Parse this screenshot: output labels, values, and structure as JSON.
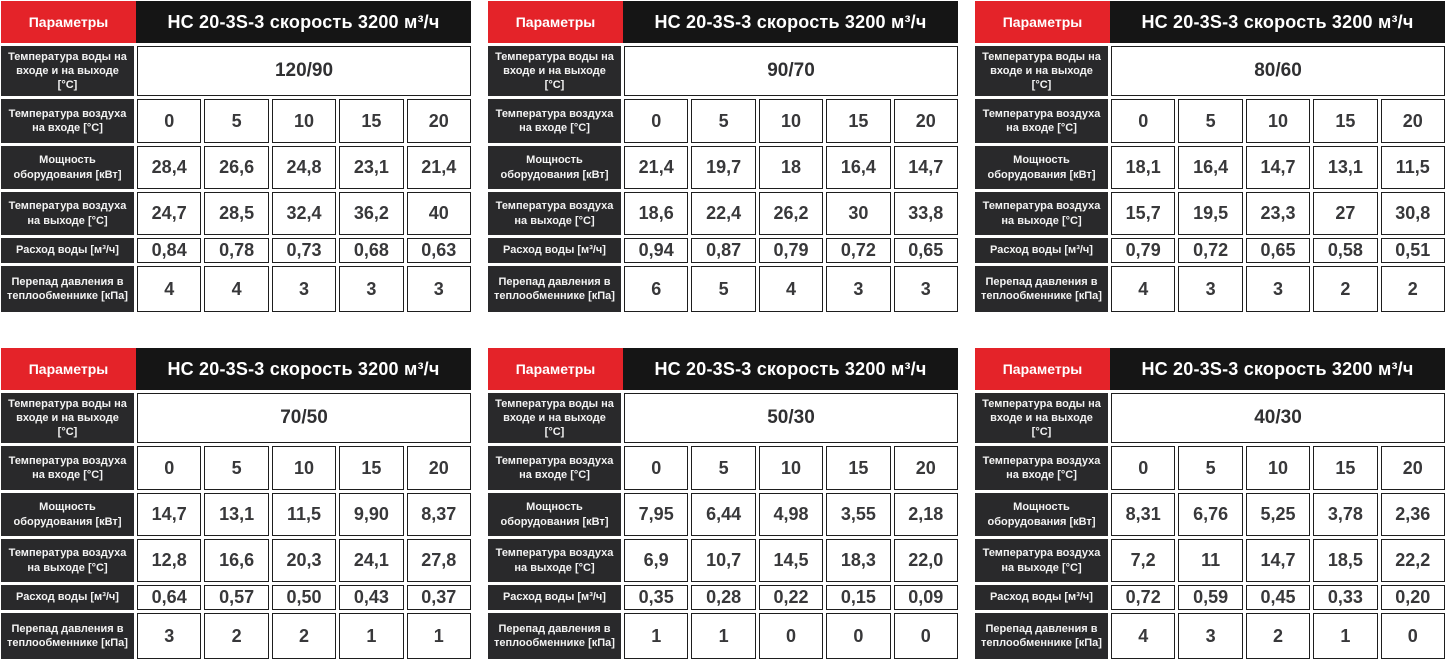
{
  "colors": {
    "accent_red": "#e42329",
    "header_black": "#151515",
    "label_dark": "#29292b",
    "cell_border": "#1e1e1e",
    "value_text": "#38383a"
  },
  "shared": {
    "params_label": "Параметры",
    "title": "НС 20-3S-3 скорость 3200 м³/ч",
    "row_labels": {
      "water_temp": "Температура воды на входе и на выходе [°C]",
      "air_in": "Температура воздуха на входе [°C]",
      "power": "Мощность оборудования [кВт]",
      "air_out": "Температура воздуха на выходе [°C]",
      "water_flow": "Расход воды [м³/ч]",
      "pressure_drop": "Перепад давления в теплообменнике [кПа]"
    },
    "air_in_values": [
      "0",
      "5",
      "10",
      "15",
      "20"
    ]
  },
  "tables": [
    {
      "water_temp": "120/90",
      "power": [
        "28,4",
        "26,6",
        "24,8",
        "23,1",
        "21,4"
      ],
      "air_out": [
        "24,7",
        "28,5",
        "32,4",
        "36,2",
        "40"
      ],
      "water_flow": [
        "0,84",
        "0,78",
        "0,73",
        "0,68",
        "0,63"
      ],
      "pressure_drop": [
        "4",
        "4",
        "3",
        "3",
        "3"
      ]
    },
    {
      "water_temp": "90/70",
      "power": [
        "21,4",
        "19,7",
        "18",
        "16,4",
        "14,7"
      ],
      "air_out": [
        "18,6",
        "22,4",
        "26,2",
        "30",
        "33,8"
      ],
      "water_flow": [
        "0,94",
        "0,87",
        "0,79",
        "0,72",
        "0,65"
      ],
      "pressure_drop": [
        "6",
        "5",
        "4",
        "3",
        "3"
      ]
    },
    {
      "water_temp": "80/60",
      "power": [
        "18,1",
        "16,4",
        "14,7",
        "13,1",
        "11,5"
      ],
      "air_out": [
        "15,7",
        "19,5",
        "23,3",
        "27",
        "30,8"
      ],
      "water_flow": [
        "0,79",
        "0,72",
        "0,65",
        "0,58",
        "0,51"
      ],
      "pressure_drop": [
        "4",
        "3",
        "3",
        "2",
        "2"
      ]
    },
    {
      "water_temp": "70/50",
      "power": [
        "14,7",
        "13,1",
        "11,5",
        "9,90",
        "8,37"
      ],
      "air_out": [
        "12,8",
        "16,6",
        "20,3",
        "24,1",
        "27,8"
      ],
      "water_flow": [
        "0,64",
        "0,57",
        "0,50",
        "0,43",
        "0,37"
      ],
      "pressure_drop": [
        "3",
        "2",
        "2",
        "1",
        "1"
      ]
    },
    {
      "water_temp": "50/30",
      "power": [
        "7,95",
        "6,44",
        "4,98",
        "3,55",
        "2,18"
      ],
      "air_out": [
        "6,9",
        "10,7",
        "14,5",
        "18,3",
        "22,0"
      ],
      "water_flow": [
        "0,35",
        "0,28",
        "0,22",
        "0,15",
        "0,09"
      ],
      "pressure_drop": [
        "1",
        "1",
        "0",
        "0",
        "0"
      ]
    },
    {
      "water_temp": "40/30",
      "power": [
        "8,31",
        "6,76",
        "5,25",
        "3,78",
        "2,36"
      ],
      "air_out": [
        "7,2",
        "11",
        "14,7",
        "18,5",
        "22,2"
      ],
      "water_flow": [
        "0,72",
        "0,59",
        "0,45",
        "0,33",
        "0,20"
      ],
      "pressure_drop": [
        "4",
        "3",
        "2",
        "1",
        "0"
      ]
    }
  ]
}
